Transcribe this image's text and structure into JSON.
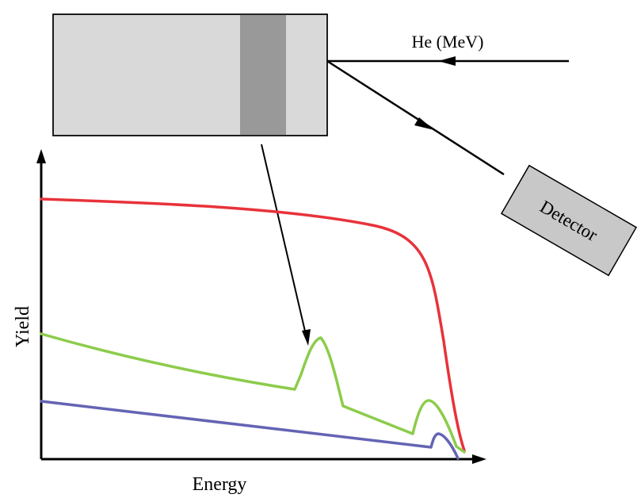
{
  "beam": {
    "label": "He (MeV)"
  },
  "detector": {
    "label": "Detector"
  },
  "axes": {
    "x_label": "Energy",
    "y_label": "Yield"
  },
  "colors": {
    "sample_fill": "#d9d9d9",
    "layer_fill": "#999999",
    "detector_fill": "#c8c8c8",
    "curve_red": "#e8323a",
    "curve_green": "#8ccc4a",
    "curve_blue": "#6464b4",
    "axis": "#000000"
  }
}
